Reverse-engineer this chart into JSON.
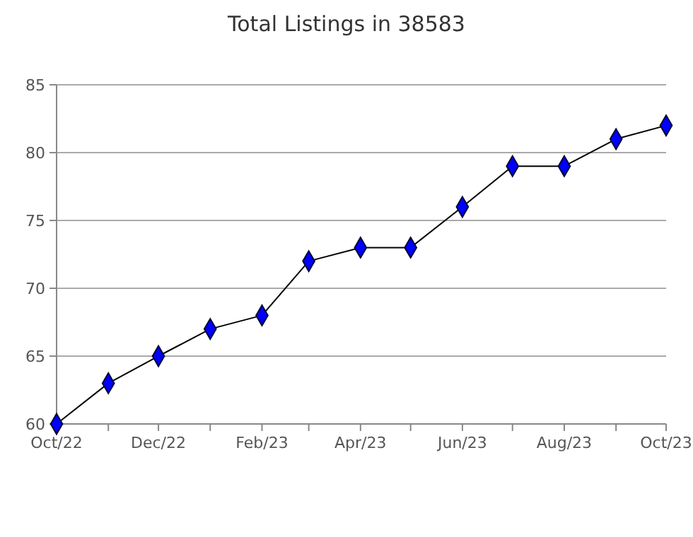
{
  "chart_data": {
    "type": "line",
    "title": "Total Listings in 38583",
    "x": [
      "2022-10",
      "2022-11",
      "2022-12",
      "2023-01",
      "2023-02",
      "2023-03",
      "2023-04",
      "2023-05",
      "2023-06",
      "2023-07",
      "2023-08",
      "2023-09",
      "2023-10"
    ],
    "series": [
      {
        "color": "#0000ff",
        "values": [
          60,
          63,
          65,
          67,
          68,
          72,
          73,
          73,
          76,
          79,
          79,
          81,
          82
        ]
      }
    ],
    "xlim": [
      "2022-10",
      "2023-10"
    ],
    "xticks": [
      {
        "value": "2022-10",
        "label": "Oct/22"
      },
      {
        "value": "2022-11",
        "label": null
      },
      {
        "value": "2022-12",
        "label": "Dec/22"
      },
      {
        "value": "2023-01",
        "label": null
      },
      {
        "value": "2023-02",
        "label": "Feb/23"
      },
      {
        "value": "2023-03",
        "label": null
      },
      {
        "value": "2023-04",
        "label": "Apr/23"
      },
      {
        "value": "2023-05",
        "label": null
      },
      {
        "value": "2023-06",
        "label": "Jun/23"
      },
      {
        "value": "2023-07",
        "label": null
      },
      {
        "value": "2023-08",
        "label": "Aug/23"
      },
      {
        "value": "2023-09",
        "label": null
      },
      {
        "value": "2023-10",
        "label": "Oct/23"
      }
    ],
    "ylim": [
      60,
      85
    ],
    "yticks": [
      60,
      65,
      70,
      75,
      80,
      85
    ],
    "grid": "y",
    "marker": "diamond",
    "line_style": "solid"
  }
}
